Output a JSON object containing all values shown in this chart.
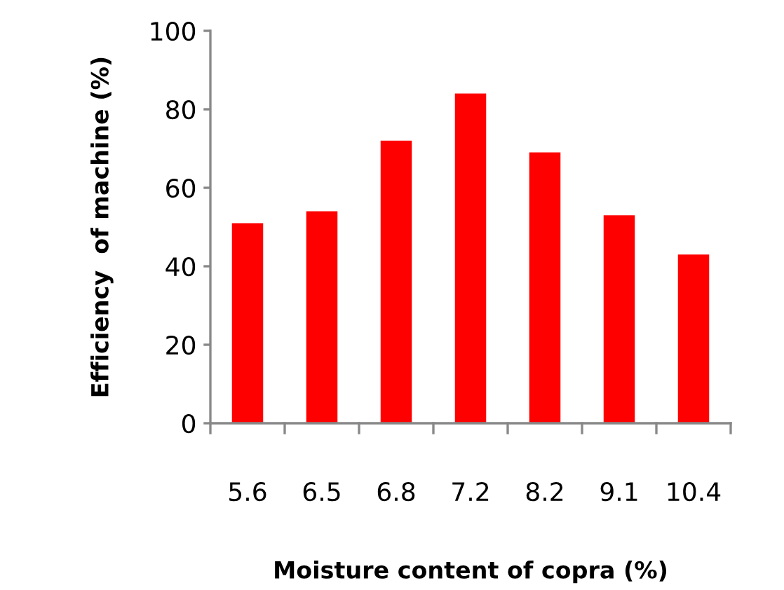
{
  "chart_data": {
    "type": "bar",
    "xlabel": "Moisture content of copra (%)",
    "ylabel": "Efficiency  of machine (%)",
    "categories": [
      "5.6",
      "6.5",
      "6.8",
      "7.2",
      "8.2",
      "9.1",
      "10.4"
    ],
    "values": [
      51,
      54,
      72,
      84,
      69,
      53,
      43
    ],
    "color": "#ff0000",
    "ylim": [
      0,
      100
    ],
    "yticks": [
      0,
      20,
      40,
      60,
      80,
      100
    ],
    "grid": false,
    "legend": false
  }
}
